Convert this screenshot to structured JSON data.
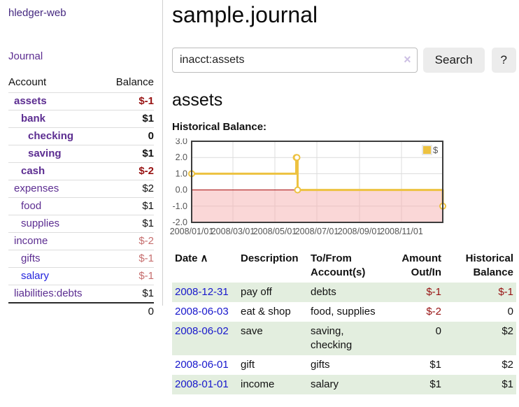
{
  "sidebar": {
    "title": "hledger-web",
    "journal_label": "Journal",
    "accounts_table": {
      "headers": {
        "account": "Account",
        "balance": "Balance"
      },
      "rows": [
        {
          "name": "assets",
          "balance": "$-1"
        },
        {
          "name": "bank",
          "balance": "$1"
        },
        {
          "name": "checking",
          "balance": "0"
        },
        {
          "name": "saving",
          "balance": "$1"
        },
        {
          "name": "cash",
          "balance": "$-2"
        },
        {
          "name": "expenses",
          "balance": "$2"
        },
        {
          "name": "food",
          "balance": "$1"
        },
        {
          "name": "supplies",
          "balance": "$1"
        },
        {
          "name": "income",
          "balance": "$-2"
        },
        {
          "name": "gifts",
          "balance": "$-1"
        },
        {
          "name": "salary",
          "balance": "$-1"
        },
        {
          "name": "liabilities:debts",
          "balance": "$1"
        }
      ],
      "total": "0"
    }
  },
  "header": {
    "title": "sample.journal"
  },
  "search": {
    "value": "inacct:assets",
    "clear_icon": "×",
    "button_label": "Search",
    "help_label": "?"
  },
  "account_page": {
    "heading": "assets",
    "chart_label": "Historical Balance:"
  },
  "chart_data": {
    "type": "line",
    "title": "Historical Balance:",
    "series": [
      {
        "name": "$",
        "color": "#edc240",
        "steps": true,
        "points": [
          [
            "2008-01-01",
            1
          ],
          [
            "2008-06-01",
            2
          ],
          [
            "2008-06-02",
            2
          ],
          [
            "2008-06-03",
            0
          ],
          [
            "2008-12-31",
            -1
          ]
        ]
      }
    ],
    "x_ticks": [
      "2008/01/01",
      "2008/03/01",
      "2008/05/01",
      "2008/07/01",
      "2008/09/01",
      "2008/11/01"
    ],
    "y_ticks": [
      3.0,
      2.0,
      1.0,
      0.0,
      -1.0,
      -2.0
    ],
    "xlim": [
      "2008-01-01",
      "2008-12-31"
    ],
    "ylim": [
      -2,
      3
    ],
    "grid": true,
    "legend_position": "top-right",
    "negative_region_color": "#f5b0b0",
    "zero_line_color": "#a40000",
    "grid_color": "#dcdcdc",
    "border_color": "#3c3c3c",
    "tick_text_color": "#545454"
  },
  "register_table": {
    "headers": {
      "date": "Date",
      "description": "Description",
      "accounts": "To/From Account(s)",
      "amount": "Amount Out/In",
      "balance": "Historical Balance"
    },
    "sort_icon": "∧",
    "rows": [
      {
        "date": "2008-12-31",
        "description": "pay off",
        "accounts": "debts",
        "amount": "$-1",
        "balance": "$-1"
      },
      {
        "date": "2008-06-03",
        "description": "eat & shop",
        "accounts": "food, supplies",
        "amount": "$-2",
        "balance": "0"
      },
      {
        "date": "2008-06-02",
        "description": "save",
        "accounts": "saving, checking",
        "amount": "0",
        "balance": "$2"
      },
      {
        "date": "2008-06-01",
        "description": "gift",
        "accounts": "gifts",
        "amount": "$1",
        "balance": "$2"
      },
      {
        "date": "2008-01-01",
        "description": "income",
        "accounts": "salary",
        "amount": "$1",
        "balance": "$1"
      }
    ]
  },
  "colors": {
    "link_purple": "#5c2d91",
    "link_blue": "#2323dd",
    "date_link_blue": "#1717cc",
    "negative_strong": "#971111",
    "negative_light": "#c66e6e",
    "row_green": "#e3eedf",
    "button_bg": "#ececec",
    "series_gold": "#edc240"
  }
}
